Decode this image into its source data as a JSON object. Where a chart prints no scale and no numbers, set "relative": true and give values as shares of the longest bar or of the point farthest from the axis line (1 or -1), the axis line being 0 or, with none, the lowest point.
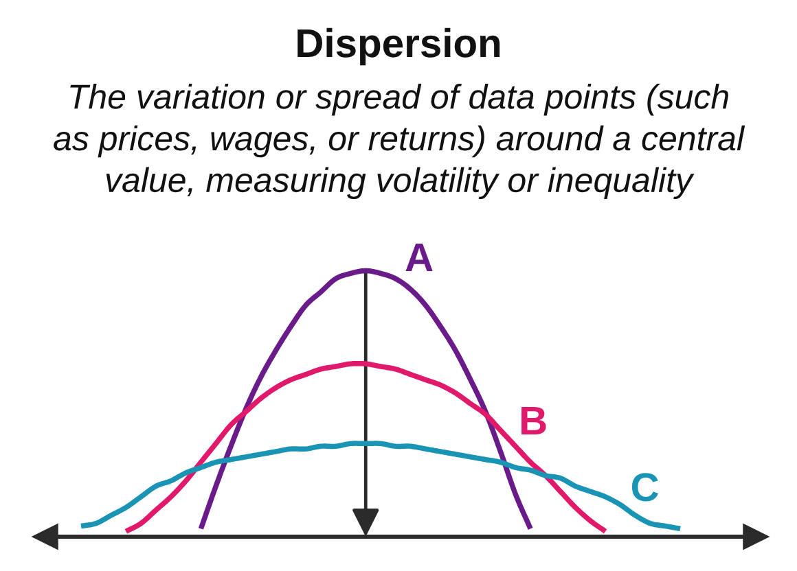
{
  "chart_data": {
    "type": "line",
    "title": "Dispersion",
    "subtitle": "The variation or spread of data points (such as prices, wages, or returns) around a central value, measuring volatility or inequality",
    "relative": true,
    "line_style": "solid",
    "categories": [
      null,
      null,
      null,
      null,
      null,
      null,
      null,
      null,
      null,
      null,
      null,
      null,
      null,
      null,
      null,
      null,
      null,
      null,
      null,
      null,
      null,
      null,
      null,
      null,
      null,
      null,
      null,
      null,
      null,
      null,
      null,
      null,
      null,
      null,
      null,
      null,
      null,
      null,
      null,
      null,
      null
    ],
    "series": [
      {
        "name": "A",
        "color": "#6a1b8a",
        "values": [
          null,
          null,
          null,
          null,
          null,
          null,
          null,
          null,
          0.03,
          0.19,
          0.34,
          0.48,
          0.6,
          0.7,
          0.79,
          0.87,
          0.92,
          0.97,
          0.99,
          1.0,
          0.99,
          0.97,
          0.93,
          0.87,
          0.79,
          0.7,
          0.59,
          0.47,
          0.32,
          0.16,
          0.03,
          null,
          null,
          null,
          null,
          null,
          null,
          null,
          null,
          null,
          null
        ]
      },
      {
        "name": "B",
        "color": "#e0196b",
        "values": [
          null,
          null,
          null,
          0.02,
          0.05,
          0.1,
          0.15,
          0.21,
          0.28,
          0.35,
          0.42,
          0.47,
          0.52,
          0.56,
          0.59,
          0.61,
          0.63,
          0.64,
          0.65,
          0.65,
          0.64,
          0.63,
          0.61,
          0.59,
          0.57,
          0.54,
          0.5,
          0.46,
          0.4,
          0.34,
          0.28,
          0.23,
          0.17,
          0.11,
          0.06,
          0.02,
          null,
          null,
          null,
          null,
          null
        ]
      },
      {
        "name": "C",
        "color": "#1a94b4",
        "values": [
          0.04,
          0.05,
          0.08,
          0.11,
          0.15,
          0.19,
          0.21,
          0.24,
          0.26,
          0.28,
          0.29,
          0.3,
          0.31,
          0.32,
          0.33,
          0.33,
          0.34,
          0.34,
          0.35,
          0.35,
          0.35,
          0.34,
          0.34,
          0.33,
          0.32,
          0.31,
          0.3,
          0.29,
          0.28,
          0.26,
          0.25,
          0.23,
          0.22,
          0.19,
          0.17,
          0.15,
          0.12,
          0.08,
          0.05,
          0.04,
          0.03
        ]
      }
    ]
  }
}
